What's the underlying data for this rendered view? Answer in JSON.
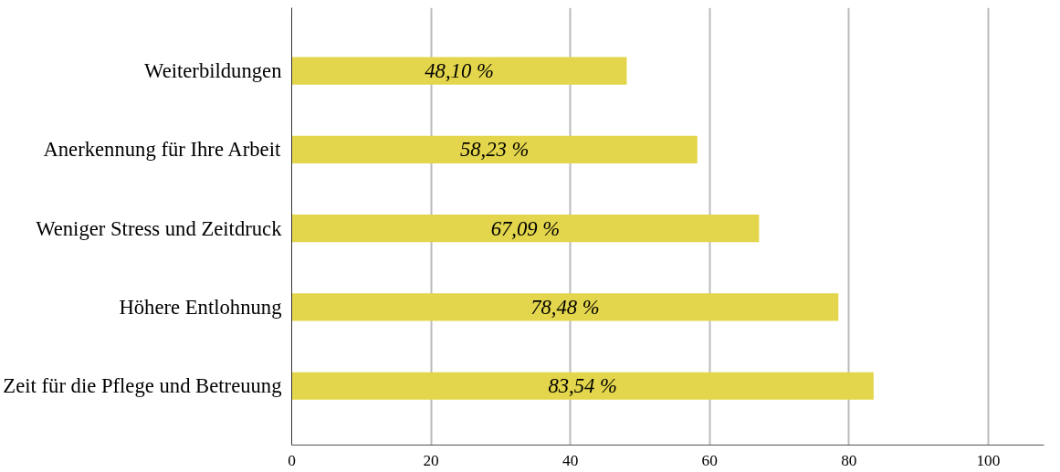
{
  "chart_data": {
    "type": "bar",
    "orientation": "horizontal",
    "categories": [
      "Weiterbildungen",
      "Anerkennung für Ihre Arbeit",
      "Weniger Stress und Zeitdruck",
      "Höhere Entlohnung",
      "Zeit für die Pflege und Betreuung"
    ],
    "values": [
      48.1,
      58.23,
      67.09,
      78.48,
      83.54
    ],
    "value_labels": [
      "48,10 %",
      "58,23 %",
      "67,09 %",
      "78,48 %",
      "83,54 %"
    ],
    "color": "#e3d64c",
    "xlim": [
      0,
      108
    ],
    "xticks": [
      0,
      20,
      40,
      60,
      80,
      100
    ],
    "grid": "x"
  }
}
